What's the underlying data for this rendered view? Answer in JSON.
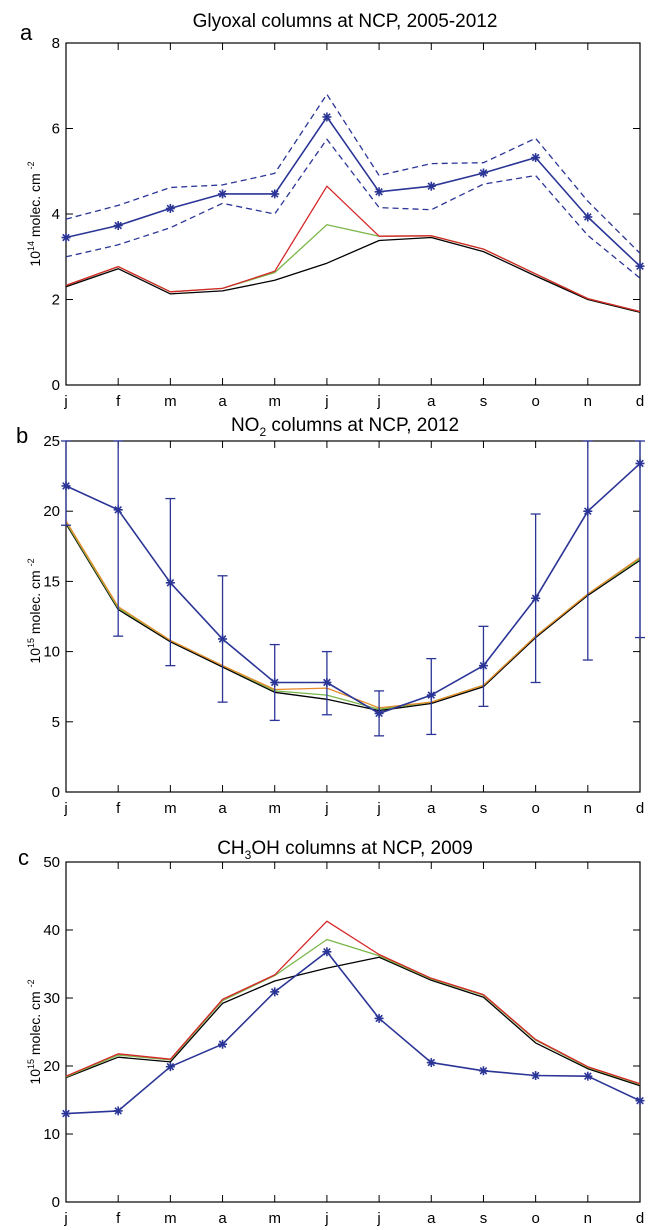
{
  "chart_data": [
    {
      "panel": "a",
      "type": "line",
      "title": "Glyoxal columns at NCP,  2005-2012",
      "ylabel": {
        "base": "10",
        "exp": "14",
        "text": " molec. cm ",
        "tail": "-2"
      },
      "categories": [
        "j",
        "f",
        "m",
        "a",
        "m",
        "j",
        "j",
        "a",
        "s",
        "o",
        "n",
        "d"
      ],
      "ylim": [
        0,
        8
      ],
      "yticks": [
        0,
        2,
        4,
        6,
        8
      ],
      "series": [
        {
          "color": "#2b3596",
          "style": "solid",
          "marker": "asterisk",
          "values": [
            3.45,
            3.73,
            4.13,
            4.47,
            4.47,
            6.27,
            4.52,
            4.65,
            4.96,
            5.32,
            3.93,
            2.78
          ]
        },
        {
          "color": "#2b3596",
          "style": "dashed",
          "values": [
            3.88,
            4.2,
            4.62,
            4.68,
            4.95,
            6.8,
            4.9,
            5.18,
            5.2,
            5.77,
            4.3,
            3.08
          ]
        },
        {
          "color": "#2b3596",
          "style": "dashed",
          "values": [
            3.0,
            3.28,
            3.68,
            4.25,
            4.0,
            5.75,
            4.15,
            4.1,
            4.7,
            4.9,
            3.5,
            2.5
          ]
        },
        {
          "color": "#000000",
          "style": "solid",
          "values": [
            2.3,
            2.72,
            2.13,
            2.2,
            2.45,
            2.85,
            3.38,
            3.45,
            3.12,
            2.55,
            2.0,
            1.7
          ]
        },
        {
          "color": "#7ab648",
          "style": "solid",
          "values": [
            2.33,
            2.77,
            2.18,
            2.26,
            2.63,
            3.75,
            3.48,
            3.49,
            3.18,
            2.6,
            2.02,
            1.72
          ]
        },
        {
          "color": "#d62728",
          "style": "solid",
          "values": [
            2.33,
            2.77,
            2.18,
            2.26,
            2.66,
            4.65,
            3.48,
            3.49,
            3.18,
            2.6,
            2.02,
            1.72
          ]
        }
      ]
    },
    {
      "panel": "b",
      "type": "line",
      "title": {
        "pre": "NO",
        "sub": "2",
        "post": " columns at NCP,  2012"
      },
      "ylabel": {
        "base": "10",
        "exp": "15",
        "text": " molec. cm ",
        "tail": "-2"
      },
      "categories": [
        "j",
        "f",
        "m",
        "a",
        "m",
        "j",
        "j",
        "a",
        "s",
        "o",
        "n",
        "d"
      ],
      "ylim": [
        0,
        25
      ],
      "yticks": [
        0,
        5,
        10,
        15,
        20,
        25
      ],
      "series": [
        {
          "color": "#2b3596",
          "style": "solid",
          "marker": "asterisk",
          "values": [
            21.8,
            20.1,
            14.9,
            10.9,
            7.8,
            7.8,
            5.6,
            6.9,
            9.0,
            13.8,
            20.0,
            23.4
          ],
          "error_low": [
            19.0,
            11.1,
            9.0,
            6.4,
            5.1,
            5.5,
            4.0,
            4.1,
            6.1,
            7.8,
            9.4,
            11.0
          ],
          "error_high": [
            25.0,
            25.0,
            20.9,
            15.4,
            10.5,
            10.0,
            7.2,
            9.5,
            11.8,
            19.8,
            25.0,
            25.0
          ]
        },
        {
          "color": "#000000",
          "style": "solid",
          "values": [
            19.1,
            13.0,
            10.7,
            8.9,
            7.1,
            6.6,
            5.8,
            6.3,
            7.5,
            11.0,
            14.0,
            16.5
          ]
        },
        {
          "color": "#7ab648",
          "style": "solid",
          "values": [
            19.2,
            13.1,
            10.8,
            9.0,
            7.2,
            6.9,
            5.9,
            6.4,
            7.6,
            11.1,
            14.1,
            16.6
          ]
        },
        {
          "color": "#e58a2a",
          "style": "solid",
          "values": [
            19.3,
            13.2,
            10.8,
            9.0,
            7.3,
            7.4,
            6.0,
            6.4,
            7.6,
            11.1,
            14.1,
            16.7
          ]
        }
      ]
    },
    {
      "panel": "c",
      "type": "line",
      "title": {
        "pre": "CH",
        "sub": "3",
        "post": "OH columns at NCP, 2009"
      },
      "ylabel": {
        "base": "10",
        "exp": "15",
        "text": " molec. cm ",
        "tail": "-2"
      },
      "categories": [
        "j",
        "f",
        "m",
        "a",
        "m",
        "j",
        "j",
        "a",
        "s",
        "o",
        "n",
        "d"
      ],
      "ylim": [
        0,
        50
      ],
      "yticks": [
        0,
        10,
        20,
        30,
        40,
        50
      ],
      "series": [
        {
          "color": "#2b3596",
          "style": "solid",
          "marker": "asterisk",
          "values": [
            13.0,
            13.4,
            19.9,
            23.2,
            30.9,
            36.8,
            27.0,
            20.5,
            19.3,
            18.6,
            18.5,
            14.9
          ]
        },
        {
          "color": "#000000",
          "style": "solid",
          "values": [
            18.3,
            21.3,
            20.6,
            29.2,
            32.5,
            34.4,
            36.0,
            32.6,
            30.1,
            23.4,
            19.6,
            17.1
          ]
        },
        {
          "color": "#7ab648",
          "style": "solid",
          "values": [
            18.4,
            21.6,
            20.9,
            29.6,
            33.3,
            38.6,
            36.2,
            32.8,
            30.4,
            23.8,
            19.8,
            17.3
          ]
        },
        {
          "color": "#d62728",
          "style": "solid",
          "values": [
            18.5,
            21.8,
            21.0,
            29.8,
            33.4,
            41.3,
            36.4,
            32.9,
            30.5,
            23.9,
            19.9,
            17.4
          ]
        }
      ]
    }
  ]
}
